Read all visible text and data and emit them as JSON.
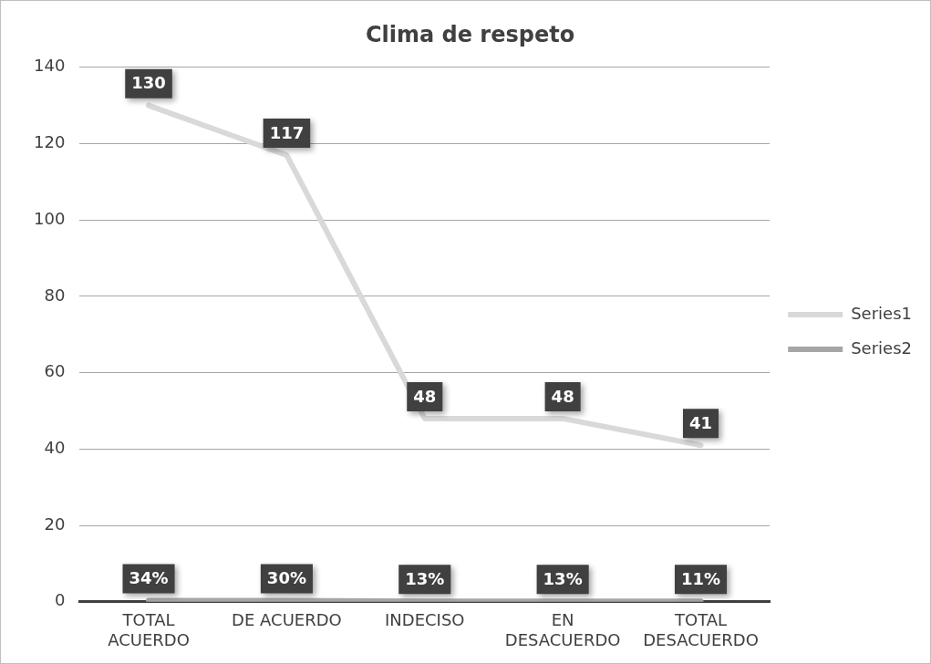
{
  "chart_data": {
    "type": "line",
    "title": "Clima de respeto",
    "categories": [
      "TOTAL ACUERDO",
      "DE ACUERDO",
      "INDECISO",
      "EN DESACUERDO",
      "TOTAL DESACUERDO"
    ],
    "series": [
      {
        "name": "Series1",
        "color": "#d9d9d9",
        "values": [
          130,
          117,
          48,
          48,
          41
        ],
        "value_labels": [
          "130",
          "117",
          "48",
          "48",
          "41"
        ]
      },
      {
        "name": "Series2",
        "color": "#a6a6a6",
        "values": [
          0.34,
          0.3,
          0.13,
          0.13,
          0.11
        ],
        "value_labels": [
          "34%",
          "30%",
          "13%",
          "13%",
          "11%"
        ]
      }
    ],
    "ylim": [
      0,
      140
    ],
    "yticks": [
      0,
      20,
      40,
      60,
      80,
      100,
      120,
      140
    ],
    "grid": "y",
    "legend": "right",
    "line_style": "solid"
  }
}
